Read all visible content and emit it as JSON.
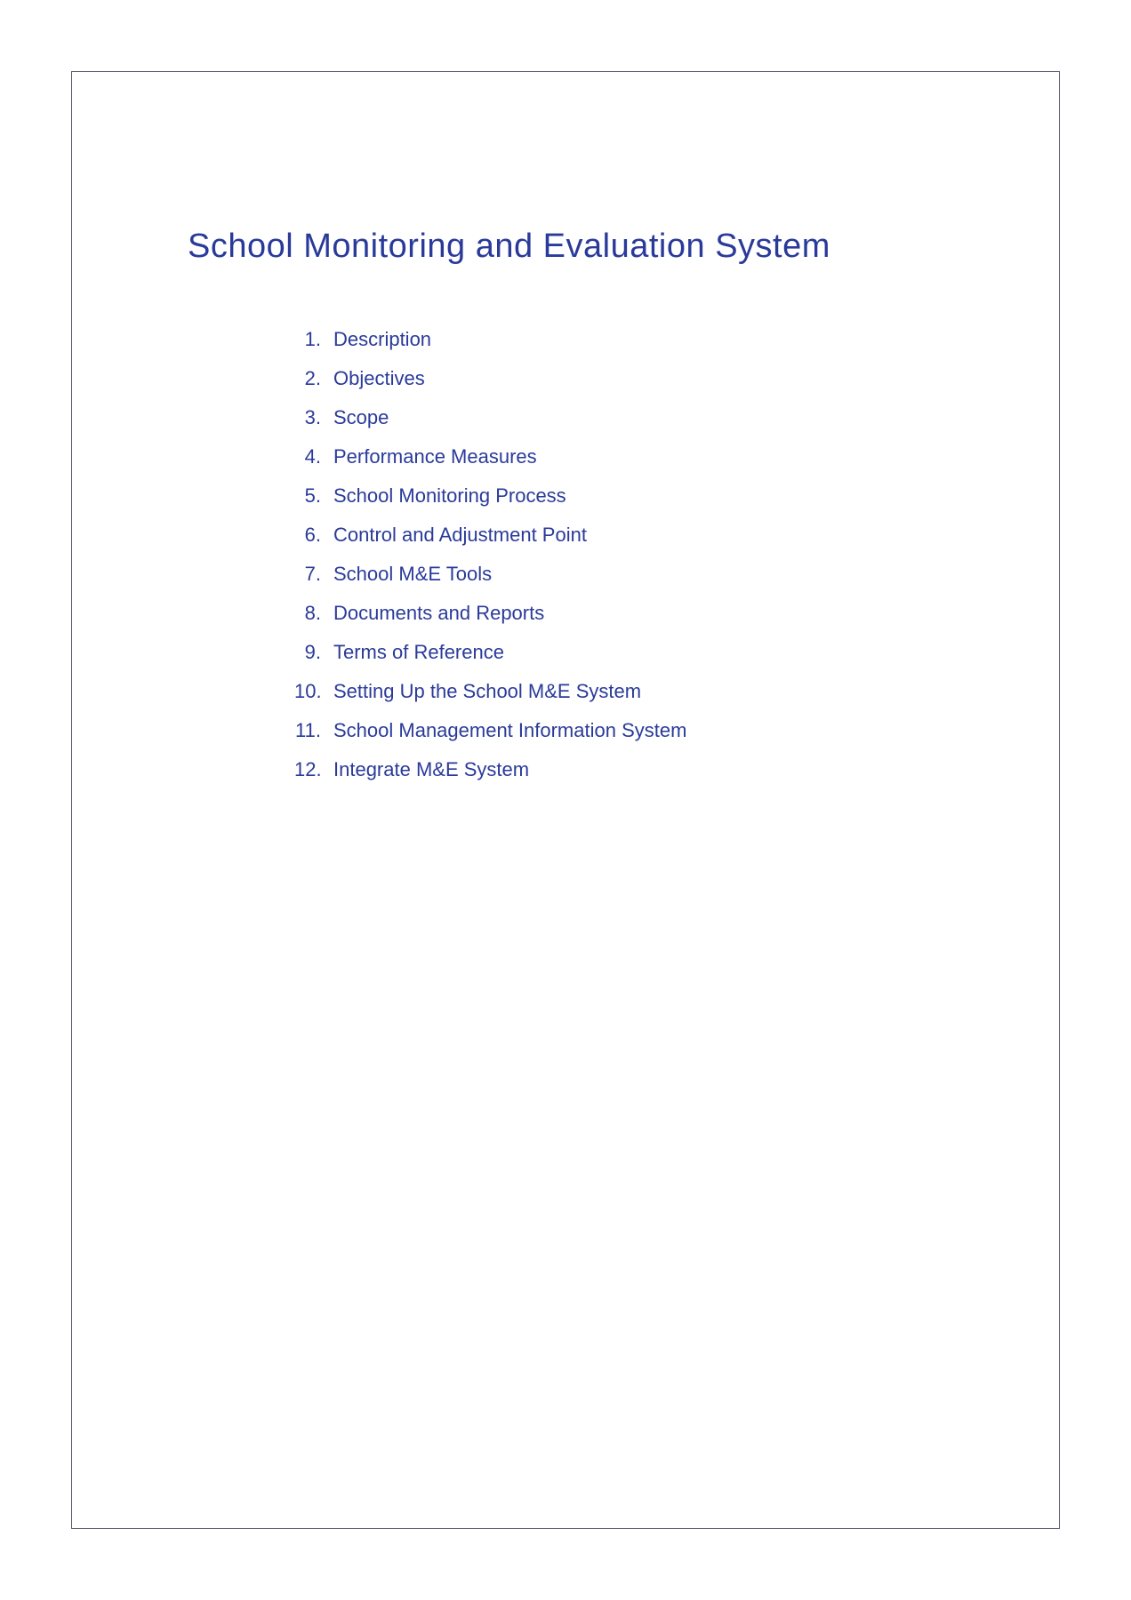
{
  "title": "School Monitoring and Evaluation System",
  "title_color": "#2a3a9a",
  "text_color": "#2a3a9a",
  "border_color": "#5a5a6a",
  "background_color": "#ffffff",
  "title_fontsize": 38,
  "item_fontsize": 22,
  "items": [
    {
      "num": "1.",
      "label": "Description"
    },
    {
      "num": "2.",
      "label": "Objectives"
    },
    {
      "num": "3.",
      "label": "Scope"
    },
    {
      "num": "4.",
      "label": "Performance Measures"
    },
    {
      "num": "5.",
      "label": "School Monitoring Process"
    },
    {
      "num": "6.",
      "label": "Control and Adjustment Point"
    },
    {
      "num": "7.",
      "label": "School M&E Tools"
    },
    {
      "num": "8.",
      "label": "Documents and Reports"
    },
    {
      "num": "9.",
      "label": "Terms of Reference"
    },
    {
      "num": "10.",
      "label": "Setting Up the School M&E System"
    },
    {
      "num": "11.",
      "label": "School Management Information System"
    },
    {
      "num": "12.",
      "label": "Integrate M&E System"
    }
  ]
}
